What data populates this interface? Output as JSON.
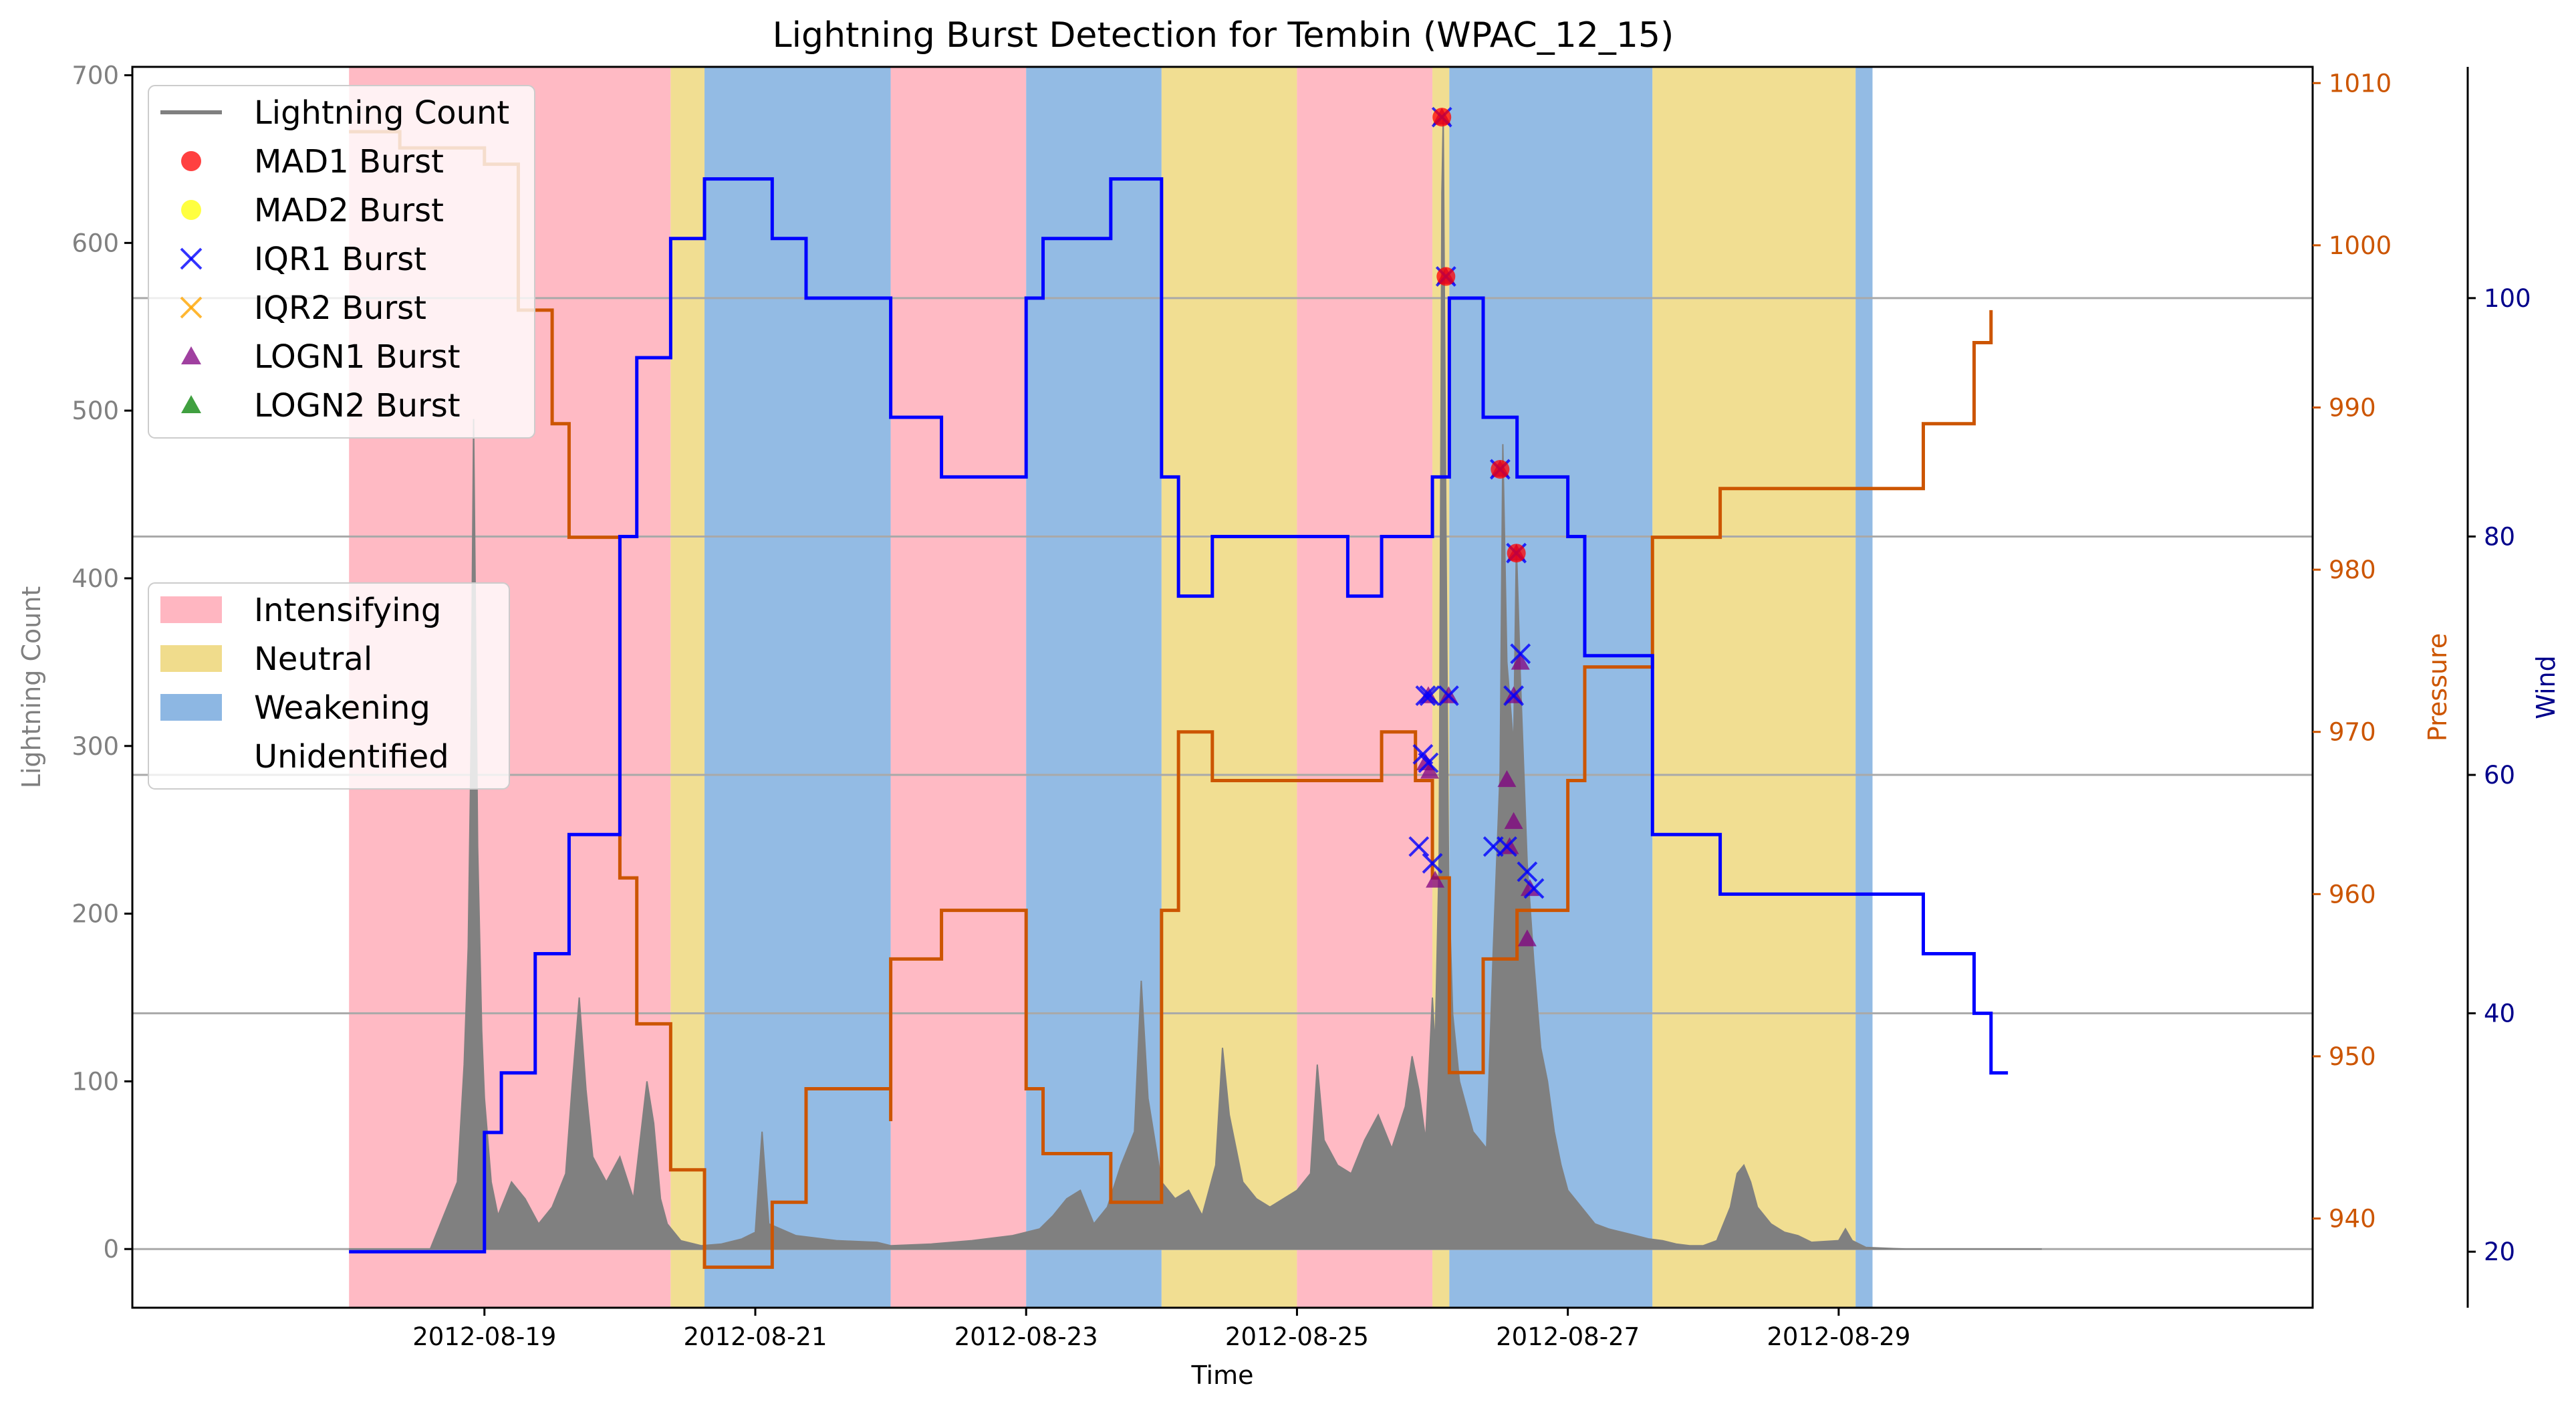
{
  "chart_data": {
    "type": "line",
    "title": "Lightning Burst Detection for Tembin (WPAC_12_15)",
    "xlabel": "Time",
    "y_axes": [
      {
        "label": "Lightning Count",
        "lim": [
          -35,
          705
        ],
        "ticks": [
          0,
          100,
          200,
          300,
          400,
          500,
          600,
          700
        ],
        "color": "#808080",
        "side": "left"
      },
      {
        "label": "Pressure",
        "lim": [
          934.5,
          1011
        ],
        "ticks": [
          940,
          950,
          960,
          970,
          980,
          990,
          1000,
          1010
        ],
        "color": "#cc5500",
        "side": "right"
      },
      {
        "label": "Wind",
        "lim": [
          15.3,
          119.4
        ],
        "ticks": [
          20,
          40,
          60,
          80,
          100
        ],
        "color": "#00008b",
        "side": "right-offset"
      }
    ],
    "x_ticks": [
      "2012-08-19",
      "2012-08-21",
      "2012-08-23",
      "2012-08-25",
      "2012-08-27",
      "2012-08-29"
    ],
    "x_range_days": [
      -1.6,
      14.5
    ],
    "phases": [
      {
        "name": "Intensifying",
        "color": "#ffb6c1",
        "start": 0,
        "end": 2.375
      },
      {
        "name": "Neutral",
        "color": "#f0dc8c",
        "start": 2.375,
        "end": 2.625
      },
      {
        "name": "Weakening",
        "color": "#8db7e3",
        "start": 2.625,
        "end": 4.0
      },
      {
        "name": "Intensifying",
        "color": "#ffb6c1",
        "start": 4.0,
        "end": 5.0
      },
      {
        "name": "Weakening",
        "color": "#8db7e3",
        "start": 5.0,
        "end": 6.0
      },
      {
        "name": "Neutral",
        "color": "#f0dc8c",
        "start": 6.0,
        "end": 7.0
      },
      {
        "name": "Intensifying",
        "color": "#ffb6c1",
        "start": 7.0,
        "end": 8.0
      },
      {
        "name": "Neutral",
        "color": "#f0dc8c",
        "start": 8.0,
        "end": 8.125
      },
      {
        "name": "Weakening",
        "color": "#8db7e3",
        "start": 8.125,
        "end": 9.625
      },
      {
        "name": "Neutral",
        "color": "#f0dc8c",
        "start": 9.625,
        "end": 11.125
      },
      {
        "name": "Weakening",
        "color": "#8db7e3",
        "start": 11.125,
        "end": 11.25
      }
    ],
    "series": [
      {
        "name": "Lightning Count",
        "axis": 0,
        "color": "#808080",
        "data": [
          [
            0,
            0
          ],
          [
            0.6,
            0
          ],
          [
            0.7,
            20
          ],
          [
            0.8,
            40
          ],
          [
            0.85,
            110
          ],
          [
            0.88,
            180
          ],
          [
            0.9,
            295
          ],
          [
            0.92,
            495
          ],
          [
            0.95,
            240
          ],
          [
            0.98,
            130
          ],
          [
            1.0,
            90
          ],
          [
            1.05,
            40
          ],
          [
            1.1,
            20
          ],
          [
            1.2,
            40
          ],
          [
            1.3,
            30
          ],
          [
            1.4,
            15
          ],
          [
            1.5,
            25
          ],
          [
            1.6,
            45
          ],
          [
            1.65,
            100
          ],
          [
            1.7,
            150
          ],
          [
            1.75,
            95
          ],
          [
            1.8,
            55
          ],
          [
            1.9,
            40
          ],
          [
            2.0,
            55
          ],
          [
            2.1,
            30
          ],
          [
            2.2,
            100
          ],
          [
            2.25,
            75
          ],
          [
            2.3,
            30
          ],
          [
            2.35,
            15
          ],
          [
            2.45,
            5
          ],
          [
            2.6,
            2
          ],
          [
            2.75,
            3
          ],
          [
            2.9,
            6
          ],
          [
            3.0,
            10
          ],
          [
            3.05,
            70
          ],
          [
            3.1,
            15
          ],
          [
            3.3,
            8
          ],
          [
            3.6,
            5
          ],
          [
            3.9,
            4
          ],
          [
            4.0,
            2
          ],
          [
            4.3,
            3
          ],
          [
            4.6,
            5
          ],
          [
            4.9,
            8
          ],
          [
            5.1,
            12
          ],
          [
            5.2,
            20
          ],
          [
            5.3,
            30
          ],
          [
            5.4,
            35
          ],
          [
            5.5,
            15
          ],
          [
            5.6,
            25
          ],
          [
            5.7,
            50
          ],
          [
            5.8,
            70
          ],
          [
            5.85,
            160
          ],
          [
            5.9,
            90
          ],
          [
            6.0,
            40
          ],
          [
            6.1,
            30
          ],
          [
            6.2,
            35
          ],
          [
            6.3,
            20
          ],
          [
            6.4,
            50
          ],
          [
            6.45,
            120
          ],
          [
            6.5,
            80
          ],
          [
            6.6,
            40
          ],
          [
            6.7,
            30
          ],
          [
            6.8,
            25
          ],
          [
            6.9,
            30
          ],
          [
            7.0,
            35
          ],
          [
            7.1,
            45
          ],
          [
            7.15,
            110
          ],
          [
            7.2,
            65
          ],
          [
            7.3,
            50
          ],
          [
            7.4,
            45
          ],
          [
            7.5,
            65
          ],
          [
            7.6,
            80
          ],
          [
            7.7,
            60
          ],
          [
            7.8,
            85
          ],
          [
            7.85,
            115
          ],
          [
            7.9,
            95
          ],
          [
            7.95,
            65
          ],
          [
            8.0,
            150
          ],
          [
            8.02,
            120
          ],
          [
            8.05,
            235
          ],
          [
            8.07,
            630
          ],
          [
            8.08,
            675
          ],
          [
            8.1,
            430
          ],
          [
            8.12,
            220
          ],
          [
            8.15,
            140
          ],
          [
            8.2,
            100
          ],
          [
            8.3,
            70
          ],
          [
            8.4,
            60
          ],
          [
            8.45,
            180
          ],
          [
            8.5,
            285
          ],
          [
            8.52,
            480
          ],
          [
            8.55,
            350
          ],
          [
            8.6,
            300
          ],
          [
            8.62,
            420
          ],
          [
            8.65,
            340
          ],
          [
            8.7,
            230
          ],
          [
            8.75,
            170
          ],
          [
            8.8,
            120
          ],
          [
            8.85,
            100
          ],
          [
            8.9,
            70
          ],
          [
            8.95,
            50
          ],
          [
            9.0,
            35
          ],
          [
            9.1,
            25
          ],
          [
            9.2,
            15
          ],
          [
            9.3,
            12
          ],
          [
            9.4,
            10
          ],
          [
            9.5,
            8
          ],
          [
            9.6,
            6
          ],
          [
            9.7,
            5
          ],
          [
            9.8,
            3
          ],
          [
            9.9,
            2
          ],
          [
            10.0,
            2
          ],
          [
            10.1,
            5
          ],
          [
            10.2,
            25
          ],
          [
            10.25,
            45
          ],
          [
            10.3,
            50
          ],
          [
            10.35,
            40
          ],
          [
            10.4,
            25
          ],
          [
            10.5,
            15
          ],
          [
            10.6,
            10
          ],
          [
            10.7,
            8
          ],
          [
            10.8,
            4
          ],
          [
            11.0,
            5
          ],
          [
            11.05,
            12
          ],
          [
            11.1,
            5
          ],
          [
            11.2,
            1
          ],
          [
            11.5,
            0
          ],
          [
            12.0,
            0
          ],
          [
            12.5,
            0
          ]
        ]
      },
      {
        "name": "",
        "axis": 1,
        "color": "#cc5500",
        "data": [
          [
            0,
            1007
          ],
          [
            0.375,
            1006
          ],
          [
            1.0,
            1005
          ],
          [
            1.25,
            996
          ],
          [
            1.5,
            989
          ],
          [
            1.625,
            982
          ],
          [
            2.0,
            975
          ],
          [
            2.0,
            961
          ],
          [
            2.125,
            952
          ],
          [
            2.375,
            943
          ],
          [
            2.625,
            937
          ],
          [
            3.125,
            941
          ],
          [
            3.375,
            948
          ],
          [
            4.0,
            946
          ],
          [
            4.0,
            956
          ],
          [
            4.375,
            959
          ],
          [
            5.0,
            948
          ],
          [
            5.125,
            944
          ],
          [
            5.625,
            941
          ],
          [
            6.0,
            959
          ],
          [
            6.125,
            970
          ],
          [
            6.375,
            967
          ],
          [
            7.625,
            970
          ],
          [
            7.875,
            967
          ],
          [
            8.0,
            961
          ],
          [
            8.125,
            959
          ],
          [
            8.125,
            949
          ],
          [
            8.375,
            956
          ],
          [
            8.625,
            959
          ],
          [
            9.0,
            967
          ],
          [
            9.125,
            974
          ],
          [
            9.625,
            982
          ],
          [
            10.125,
            985
          ],
          [
            11.625,
            989
          ],
          [
            12.0,
            994
          ],
          [
            12.125,
            996
          ]
        ]
      },
      {
        "name": "",
        "axis": 2,
        "color": "#0000ff",
        "data": [
          [
            0,
            20
          ],
          [
            1.0,
            30
          ],
          [
            1.125,
            35
          ],
          [
            1.375,
            45
          ],
          [
            1.625,
            55
          ],
          [
            2.0,
            80
          ],
          [
            2.125,
            95
          ],
          [
            2.375,
            105
          ],
          [
            2.625,
            110
          ],
          [
            3.125,
            105
          ],
          [
            3.375,
            100
          ],
          [
            4.0,
            90
          ],
          [
            4.375,
            85
          ],
          [
            5.0,
            100
          ],
          [
            5.125,
            105
          ],
          [
            5.625,
            110
          ],
          [
            6.0,
            85
          ],
          [
            6.125,
            75
          ],
          [
            6.375,
            80
          ],
          [
            7.375,
            75
          ],
          [
            7.625,
            80
          ],
          [
            8.0,
            85
          ],
          [
            8.125,
            100
          ],
          [
            8.375,
            90
          ],
          [
            8.625,
            85
          ],
          [
            9.0,
            80
          ],
          [
            9.125,
            70
          ],
          [
            9.625,
            55
          ],
          [
            10.125,
            50
          ],
          [
            11.625,
            45
          ],
          [
            12.0,
            40
          ],
          [
            12.125,
            35
          ],
          [
            12.25,
            35
          ]
        ]
      }
    ],
    "bursts": {
      "MAD1 Burst": [
        [
          8.07,
          675
        ],
        [
          8.1,
          580
        ],
        [
          8.5,
          465
        ],
        [
          8.62,
          415
        ]
      ],
      "MAD2 Burst": [],
      "IQR1 Burst": [
        [
          8.07,
          675
        ],
        [
          8.1,
          580
        ],
        [
          8.5,
          465
        ],
        [
          8.62,
          415
        ],
        [
          7.95,
          330
        ],
        [
          7.98,
          330
        ],
        [
          8.12,
          330
        ],
        [
          7.93,
          295
        ],
        [
          7.97,
          290
        ],
        [
          7.9,
          240
        ],
        [
          8.0,
          230
        ],
        [
          8.45,
          240
        ],
        [
          8.55,
          240
        ],
        [
          8.6,
          330
        ],
        [
          8.65,
          355
        ],
        [
          8.7,
          225
        ],
        [
          8.75,
          215
        ]
      ],
      "IQR2 Burst": [],
      "LOGN1 Burst": [
        [
          8.07,
          675
        ],
        [
          8.1,
          580
        ],
        [
          8.5,
          465
        ],
        [
          8.62,
          415
        ],
        [
          7.97,
          330
        ],
        [
          8.12,
          330
        ],
        [
          7.95,
          290
        ],
        [
          7.98,
          285
        ],
        [
          8.02,
          220
        ],
        [
          8.55,
          280
        ],
        [
          8.57,
          240
        ],
        [
          8.6,
          330
        ],
        [
          8.65,
          350
        ],
        [
          8.6,
          255
        ],
        [
          8.72,
          215
        ],
        [
          8.7,
          185
        ]
      ],
      "LOGN2 Burst": []
    },
    "hlines": [
      {
        "axis": 0,
        "value": 0
      },
      {
        "axis": 2,
        "value": 100
      },
      {
        "axis": 2,
        "value": 80
      },
      {
        "axis": 2,
        "value": 60
      },
      {
        "axis": 2,
        "value": 40
      }
    ],
    "legend_top": {
      "position": "top-left",
      "items": [
        {
          "label": "Lightning Count",
          "marker": "line",
          "color": "#808080"
        },
        {
          "label": "MAD1 Burst",
          "marker": "circle",
          "color": "#ff0000"
        },
        {
          "label": "MAD2 Burst",
          "marker": "circle",
          "color": "#ffff00"
        },
        {
          "label": "IQR1 Burst",
          "marker": "x",
          "color": "#0000ff"
        },
        {
          "label": "IQR2 Burst",
          "marker": "x",
          "color": "#ffa500"
        },
        {
          "label": "LOGN1 Burst",
          "marker": "triangle",
          "color": "#800080"
        },
        {
          "label": "LOGN2 Burst",
          "marker": "triangle",
          "color": "#008000"
        }
      ]
    },
    "legend_phase": {
      "position": "center-left",
      "items": [
        {
          "label": "Intensifying",
          "color": "#ffb6c1"
        },
        {
          "label": "Neutral",
          "color": "#f0dc8c"
        },
        {
          "label": "Weakening",
          "color": "#8db7e3"
        },
        {
          "label": "Unidentified",
          "color": "#ffffff"
        }
      ]
    }
  }
}
